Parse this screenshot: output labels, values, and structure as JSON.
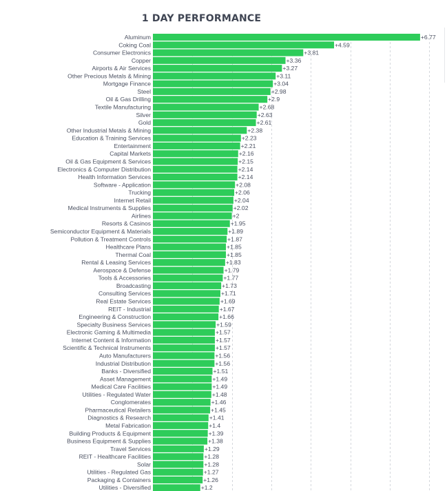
{
  "chart_data": {
    "type": "bar",
    "orientation": "horizontal",
    "title": "1 DAY PERFORMANCE",
    "xlabel": "",
    "ylabel": "",
    "xlim": [
      0,
      7
    ],
    "grid": true,
    "bar_color": "#2ecc5a",
    "categories": [
      "Aluminum",
      "Coking Coal",
      "Consumer Electronics",
      "Copper",
      "Airports & Air Services",
      "Other Precious Metals & Mining",
      "Mortgage Finance",
      "Steel",
      "Oil & Gas Drilling",
      "Textile Manufacturing",
      "Silver",
      "Gold",
      "Other Industrial Metals & Mining",
      "Education & Training Services",
      "Entertainment",
      "Capital Markets",
      "Oil & Gas Equipment & Services",
      "Electronics & Computer Distribution",
      "Health Information Services",
      "Software - Application",
      "Trucking",
      "Internet Retail",
      "Medical Instruments & Supplies",
      "Airlines",
      "Resorts & Casinos",
      "Semiconductor Equipment & Materials",
      "Pollution & Treatment Controls",
      "Healthcare Plans",
      "Thermal Coal",
      "Rental & Leasing Services",
      "Aerospace & Defense",
      "Tools & Accessories",
      "Broadcasting",
      "Consulting Services",
      "Real Estate Services",
      "REIT - Industrial",
      "Engineering & Construction",
      "Specialty Business Services",
      "Electronic Gaming & Multimedia",
      "Internet Content & Information",
      "Scientific & Technical Instruments",
      "Auto Manufacturers",
      "Industrial Distribution",
      "Banks - Diversified",
      "Asset Management",
      "Medical Care Facilities",
      "Utilities - Regulated Water",
      "Conglomerates",
      "Pharmaceutical Retailers",
      "Diagnostics & Research",
      "Metal Fabrication",
      "Building Products & Equipment",
      "Business Equipment & Supplies",
      "Travel Services",
      "REIT - Healthcare Facilities",
      "Solar",
      "Utilities - Regulated Gas",
      "Packaging & Containers",
      "Utilities - Diversified"
    ],
    "values": [
      6.77,
      4.59,
      3.81,
      3.36,
      3.27,
      3.11,
      3.04,
      2.98,
      2.9,
      2.68,
      2.63,
      2.61,
      2.38,
      2.23,
      2.21,
      2.16,
      2.15,
      2.14,
      2.14,
      2.08,
      2.06,
      2.04,
      2.02,
      2,
      1.95,
      1.89,
      1.87,
      1.85,
      1.85,
      1.83,
      1.79,
      1.77,
      1.73,
      1.71,
      1.69,
      1.67,
      1.66,
      1.59,
      1.57,
      1.57,
      1.57,
      1.56,
      1.56,
      1.51,
      1.49,
      1.49,
      1.48,
      1.46,
      1.45,
      1.41,
      1.4,
      1.39,
      1.38,
      1.29,
      1.28,
      1.28,
      1.27,
      1.26,
      1.2
    ],
    "data_labels": [
      "+6.77",
      "+4.59",
      "+3.81",
      "+3.36",
      "+3.27",
      "+3.11",
      "+3.04",
      "+2.98",
      "+2.9",
      "+2.68",
      "+2.63",
      "+2.61",
      "+2.38",
      "+2.23",
      "+2.21",
      "+2.16",
      "+2.15",
      "+2.14",
      "+2.14",
      "+2.08",
      "+2.06",
      "+2.04",
      "+2.02",
      "+2",
      "+1.95",
      "+1.89",
      "+1.87",
      "+1.85",
      "+1.85",
      "+1.83",
      "+1.79",
      "+1.77",
      "+1.73",
      "+1.71",
      "+1.69",
      "+1.67",
      "+1.66",
      "+1.59",
      "+1.57",
      "+1.57",
      "+1.57",
      "+1.56",
      "+1.56",
      "+1.51",
      "+1.49",
      "+1.49",
      "+1.48",
      "+1.46",
      "+1.45",
      "+1.41",
      "+1.4",
      "+1.39",
      "+1.38",
      "+1.29",
      "+1.28",
      "+1.28",
      "+1.27",
      "+1.26",
      "+1.2"
    ]
  }
}
